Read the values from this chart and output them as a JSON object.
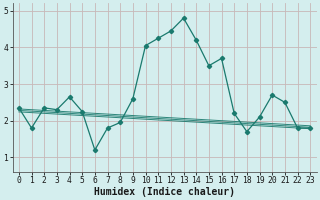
{
  "x": [
    0,
    1,
    2,
    3,
    4,
    5,
    6,
    7,
    8,
    9,
    10,
    11,
    12,
    13,
    14,
    15,
    16,
    17,
    18,
    19,
    20,
    21,
    22,
    23
  ],
  "y_main": [
    2.35,
    1.8,
    2.35,
    2.3,
    2.65,
    2.25,
    1.2,
    1.8,
    1.95,
    2.6,
    4.05,
    4.25,
    4.45,
    4.8,
    4.2,
    3.5,
    3.7,
    2.2,
    1.7,
    2.1,
    2.7,
    2.5,
    1.8,
    1.8
  ],
  "trend1": [
    2.28,
    2.26,
    2.24,
    2.22,
    2.2,
    2.18,
    2.16,
    2.14,
    2.12,
    2.1,
    2.08,
    2.06,
    2.04,
    2.02,
    2.0,
    1.98,
    1.96,
    1.94,
    1.92,
    1.9,
    1.88,
    1.86,
    1.84,
    1.82
  ],
  "trend2": [
    2.32,
    2.3,
    2.28,
    2.26,
    2.24,
    2.22,
    2.2,
    2.18,
    2.16,
    2.14,
    2.12,
    2.1,
    2.08,
    2.06,
    2.04,
    2.02,
    2.0,
    1.98,
    1.96,
    1.94,
    1.92,
    1.9,
    1.88,
    1.86
  ],
  "trend3": [
    2.24,
    2.22,
    2.2,
    2.18,
    2.16,
    2.14,
    2.12,
    2.1,
    2.08,
    2.06,
    2.04,
    2.02,
    2.0,
    1.98,
    1.96,
    1.94,
    1.92,
    1.9,
    1.88,
    1.86,
    1.84,
    1.82,
    1.8,
    1.78
  ],
  "xlabel": "Humidex (Indice chaleur)",
  "ylim": [
    0.6,
    5.2
  ],
  "xlim": [
    -0.5,
    23.5
  ],
  "yticks": [
    1,
    2,
    3,
    4,
    5
  ],
  "xticks": [
    0,
    1,
    2,
    3,
    4,
    5,
    6,
    7,
    8,
    9,
    10,
    11,
    12,
    13,
    14,
    15,
    16,
    17,
    18,
    19,
    20,
    21,
    22,
    23
  ],
  "line_color": "#1a7a6e",
  "bg_color": "#d4eeee",
  "grid_color": "#c8b8b8",
  "tick_fontsize": 5.8,
  "label_fontsize": 7.0
}
